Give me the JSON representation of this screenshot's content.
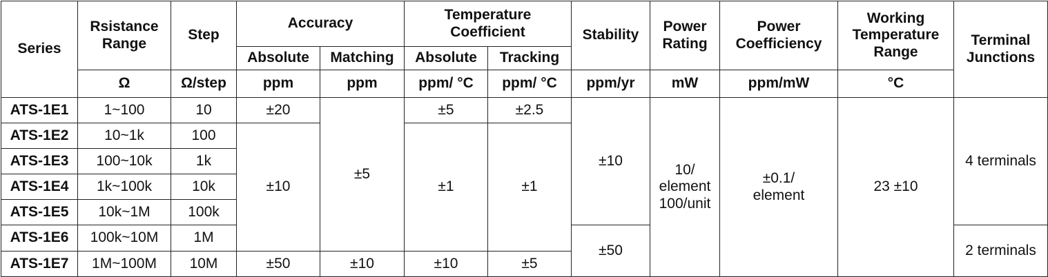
{
  "headers": {
    "series": "Series",
    "resistance_range_1": "Rsistance",
    "resistance_range_2": "Range",
    "step": "Step",
    "accuracy": "Accuracy",
    "temp_coeff_1": "Temperature",
    "temp_coeff_2": "Coefficient",
    "stability": "Stability",
    "power_rating_1": "Power",
    "power_rating_2": "Rating",
    "power_coeff_1": "Power",
    "power_coeff_2": "Coefficiency",
    "working_temp_1": "Working",
    "working_temp_2": "Temperature",
    "working_temp_3": "Range",
    "terminal_1": "Terminal",
    "terminal_2": "Junctions",
    "accuracy_absolute": "Absolute",
    "accuracy_matching": "Matching",
    "tc_absolute": "Absolute",
    "tc_tracking": "Tracking"
  },
  "units": {
    "resistance": "Ω",
    "step": "Ω/step",
    "acc_absolute": "ppm",
    "acc_matching": "ppm",
    "tc_absolute": "ppm/ °C",
    "tc_tracking": "ppm/ °C",
    "stability": "ppm/yr",
    "power_rating": "mW",
    "power_coeff": "ppm/mW",
    "working_temp": "°C"
  },
  "rows": [
    {
      "series": "ATS-1E1",
      "range": "1~100",
      "step": "10"
    },
    {
      "series": "ATS-1E2",
      "range": "10~1k",
      "step": "100"
    },
    {
      "series": "ATS-1E3",
      "range": "100~10k",
      "step": "1k"
    },
    {
      "series": "ATS-1E4",
      "range": "1k~100k",
      "step": "10k"
    },
    {
      "series": "ATS-1E5",
      "range": "10k~1M",
      "step": "100k"
    },
    {
      "series": "ATS-1E6",
      "range": "100k~10M",
      "step": "1M"
    },
    {
      "series": "ATS-1E7",
      "range": "1M~100M",
      "step": "10M"
    }
  ],
  "merged": {
    "acc_abs_e1": "±20",
    "acc_abs_e2_e6": "±10",
    "acc_abs_e7": "±50",
    "acc_match_e1_e6": "±5",
    "acc_match_e7": "±10",
    "tc_abs_e1": "±5",
    "tc_abs_e2_e6": "±1",
    "tc_abs_e7": "±10",
    "tc_track_e1": "±2.5",
    "tc_track_e2_e6": "±1",
    "tc_track_e7": "±5",
    "stability_e1_e5": "±10",
    "stability_e6_e7": "±50",
    "power_rating_1": "10/",
    "power_rating_2": "element",
    "power_rating_3": "100/unit",
    "power_coeff_1": "±0.1/",
    "power_coeff_2": "element",
    "working_temp": "23 ±10",
    "terminals_e1_e5": "4 terminals",
    "terminals_e6_e7": "2 terminals"
  }
}
